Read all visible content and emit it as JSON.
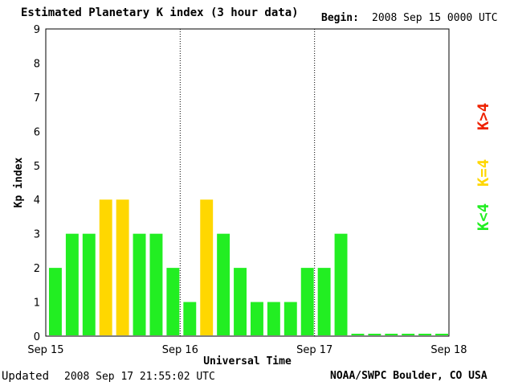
{
  "header": {
    "title": "Estimated Planetary K index (3 hour data)",
    "begin_label": "Begin:",
    "begin_value": "2008 Sep 15 0000 UTC"
  },
  "footer": {
    "updated_label": "Updated",
    "updated_value": "2008 Sep 17 21:55:02 UTC",
    "credit": "NOAA/SWPC Boulder, CO USA"
  },
  "legend": {
    "items": [
      {
        "label": "K<4",
        "color": "#22ee22"
      },
      {
        "label": "K=4",
        "color": "#ffd700"
      },
      {
        "label": "K>4",
        "color": "#ee2200"
      }
    ]
  },
  "chart_data": {
    "type": "bar",
    "title": "Estimated Planetary K index (3 hour data)",
    "xlabel": "Universal Time",
    "ylabel": "Kp index",
    "ylim": [
      0,
      9
    ],
    "yticks": [
      0,
      1,
      2,
      3,
      4,
      5,
      6,
      7,
      8,
      9
    ],
    "xticks": [
      "Sep 15",
      "Sep 16",
      "Sep 17",
      "Sep 18"
    ],
    "interval_hours": 3,
    "values": [
      2,
      3,
      3,
      4,
      4,
      3,
      3,
      2,
      1,
      4,
      3,
      2,
      1,
      1,
      1,
      2,
      2,
      3,
      0,
      0,
      0,
      0,
      0,
      0
    ],
    "day_separators": [
      "Sep 16",
      "Sep 17"
    ],
    "colors": {
      "below4": "#22ee22",
      "equal4": "#ffd700",
      "above4": "#ee2200",
      "frame": "#000000"
    }
  }
}
